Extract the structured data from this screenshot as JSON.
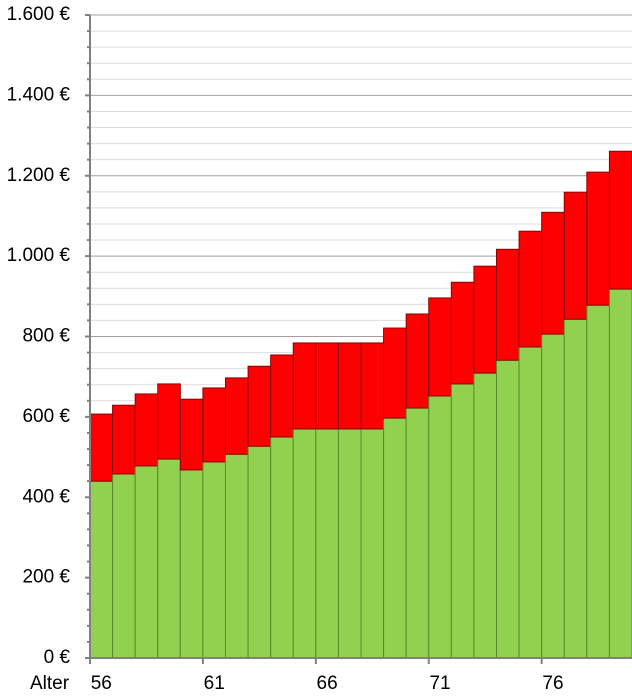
{
  "chart_data": {
    "type": "stacked_bar",
    "x_label": "Alter",
    "categories": [
      "56",
      null,
      null,
      null,
      null,
      "61",
      null,
      null,
      null,
      null,
      "66",
      null,
      null,
      null,
      null,
      "71",
      null,
      null,
      null,
      null,
      "76",
      null,
      null,
      null
    ],
    "series": [
      {
        "color": "#92d050",
        "edge": "#5a8a2a",
        "values": [
          440,
          458,
          478,
          495,
          468,
          488,
          507,
          527,
          550,
          570,
          570,
          570,
          570,
          597,
          622,
          652,
          682,
          709,
          741,
          774,
          806,
          843,
          878,
          918
        ]
      },
      {
        "color": "#ff0000",
        "edge": "#8b0000",
        "values": [
          167,
          171,
          179,
          187,
          176,
          184,
          190,
          199,
          204,
          214,
          214,
          214,
          214,
          224,
          234,
          244,
          253,
          266,
          276,
          288,
          303,
          316,
          331,
          343
        ]
      }
    ],
    "ylim": [
      0,
      1600
    ],
    "yticks": [
      {
        "value": 0,
        "label": "0 €"
      },
      {
        "value": 200,
        "label": "200 €"
      },
      {
        "value": 400,
        "label": "400 €"
      },
      {
        "value": 600,
        "label": "600 €"
      },
      {
        "value": 800,
        "label": "800 €"
      },
      {
        "value": 1000,
        "label": "1.000 €"
      },
      {
        "value": 1200,
        "label": "1.200 €"
      },
      {
        "value": 1400,
        "label": "1.400 €"
      },
      {
        "value": 1600,
        "label": "1.600 €"
      }
    ],
    "minor_divisions": 5,
    "grid": true
  }
}
